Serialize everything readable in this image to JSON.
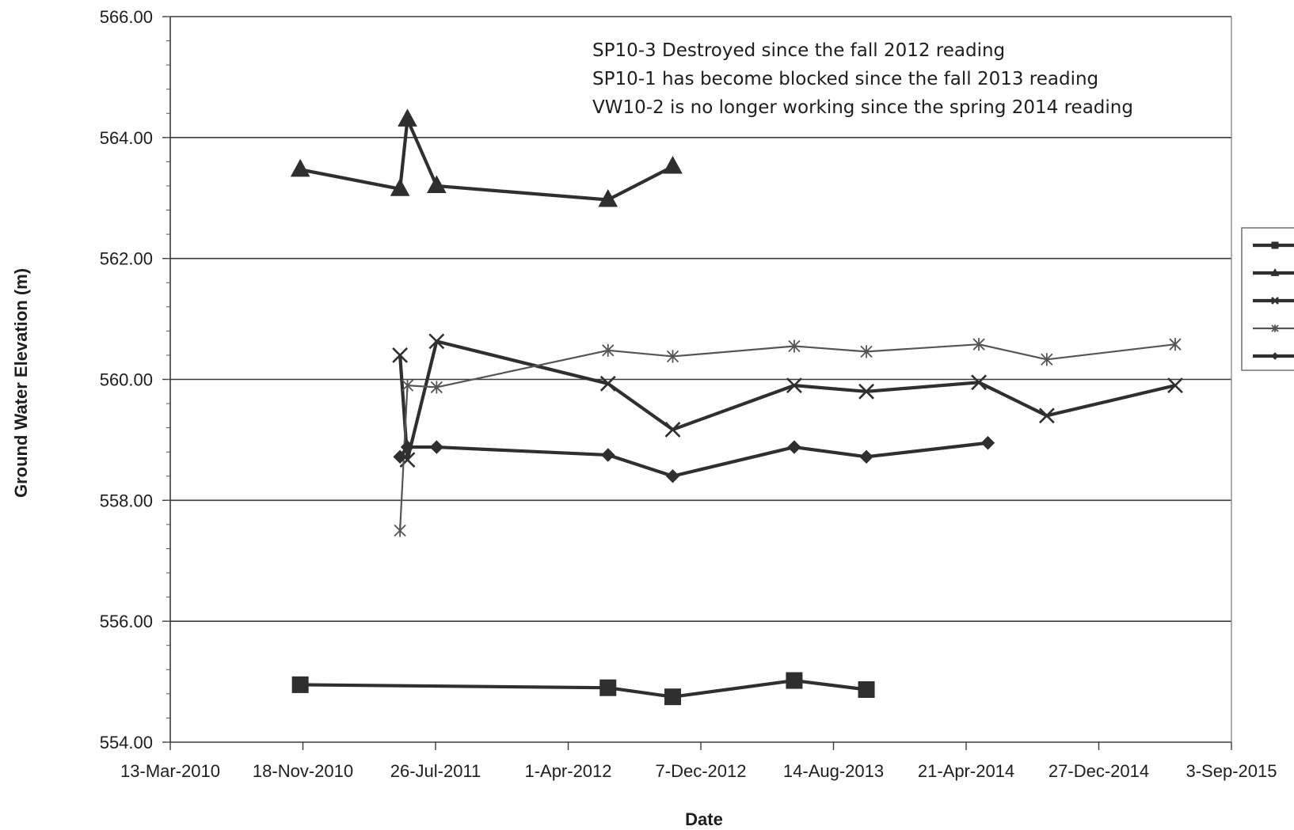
{
  "chart_data": {
    "type": "line",
    "title": "",
    "xlabel": "Date",
    "ylabel": "Ground Water Elevation (m)",
    "x_ticks": [
      "13-Mar-2010",
      "18-Nov-2010",
      "26-Jul-2011",
      "1-Apr-2012",
      "7-Dec-2012",
      "14-Aug-2013",
      "21-Apr-2014",
      "27-Dec-2014",
      "3-Sep-2015"
    ],
    "xlim": [
      "2010-03-13",
      "2015-09-03"
    ],
    "y_ticks": [
      "554.00",
      "556.00",
      "558.00",
      "560.00",
      "562.00",
      "564.00",
      "566.00"
    ],
    "ylim": [
      554,
      566
    ],
    "grid": "horizontal major gridlines",
    "legend_position": "right",
    "annotations": [
      "SP10-3 Destroyed since the fall 2012 reading",
      "SP10-1 has become blocked since the fall 2013 reading",
      "VW10-2 is no longer working since the spring 2014 reading"
    ],
    "series": [
      {
        "marker": "square",
        "color": "#2f2f2f",
        "points": [
          [
            "2010-11-13",
            554.95
          ],
          [
            "2012-06-15",
            554.9
          ],
          [
            "2012-10-15",
            554.75
          ],
          [
            "2013-06-01",
            555.02
          ],
          [
            "2013-10-15",
            554.87
          ]
        ]
      },
      {
        "marker": "triangle",
        "color": "#2f2f2f",
        "points": [
          [
            "2010-11-13",
            563.47
          ],
          [
            "2011-05-20",
            563.15
          ],
          [
            "2011-06-03",
            564.3
          ],
          [
            "2011-07-28",
            563.2
          ],
          [
            "2012-06-15",
            562.97
          ],
          [
            "2012-10-15",
            563.52
          ]
        ]
      },
      {
        "marker": "x",
        "color": "#2f2f2f",
        "points": [
          [
            "2011-05-20",
            560.4
          ],
          [
            "2011-06-03",
            558.67
          ],
          [
            "2011-07-28",
            560.63
          ],
          [
            "2012-06-15",
            559.93
          ],
          [
            "2012-10-15",
            559.17
          ],
          [
            "2013-06-01",
            559.9
          ],
          [
            "2013-10-15",
            559.8
          ],
          [
            "2014-05-15",
            559.95
          ],
          [
            "2014-09-20",
            559.4
          ],
          [
            "2015-05-20",
            559.9
          ]
        ]
      },
      {
        "marker": "asterisk",
        "color": "#555555",
        "points": [
          [
            "2011-05-20",
            557.5
          ],
          [
            "2011-06-03",
            559.9
          ],
          [
            "2011-07-28",
            559.87
          ],
          [
            "2012-06-15",
            560.48
          ],
          [
            "2012-10-15",
            560.38
          ],
          [
            "2013-06-01",
            560.55
          ],
          [
            "2013-10-15",
            560.46
          ],
          [
            "2014-05-15",
            560.58
          ],
          [
            "2014-09-20",
            560.33
          ],
          [
            "2015-05-20",
            560.58
          ]
        ]
      },
      {
        "marker": "diamond",
        "color": "#2f2f2f",
        "points": [
          [
            "2011-05-20",
            558.72
          ],
          [
            "2011-06-03",
            558.88
          ],
          [
            "2011-07-28",
            558.88
          ],
          [
            "2012-06-15",
            558.75
          ],
          [
            "2012-10-15",
            558.4
          ],
          [
            "2013-06-01",
            558.88
          ],
          [
            "2013-10-15",
            558.72
          ],
          [
            "2014-06-01",
            558.95
          ]
        ]
      }
    ]
  }
}
